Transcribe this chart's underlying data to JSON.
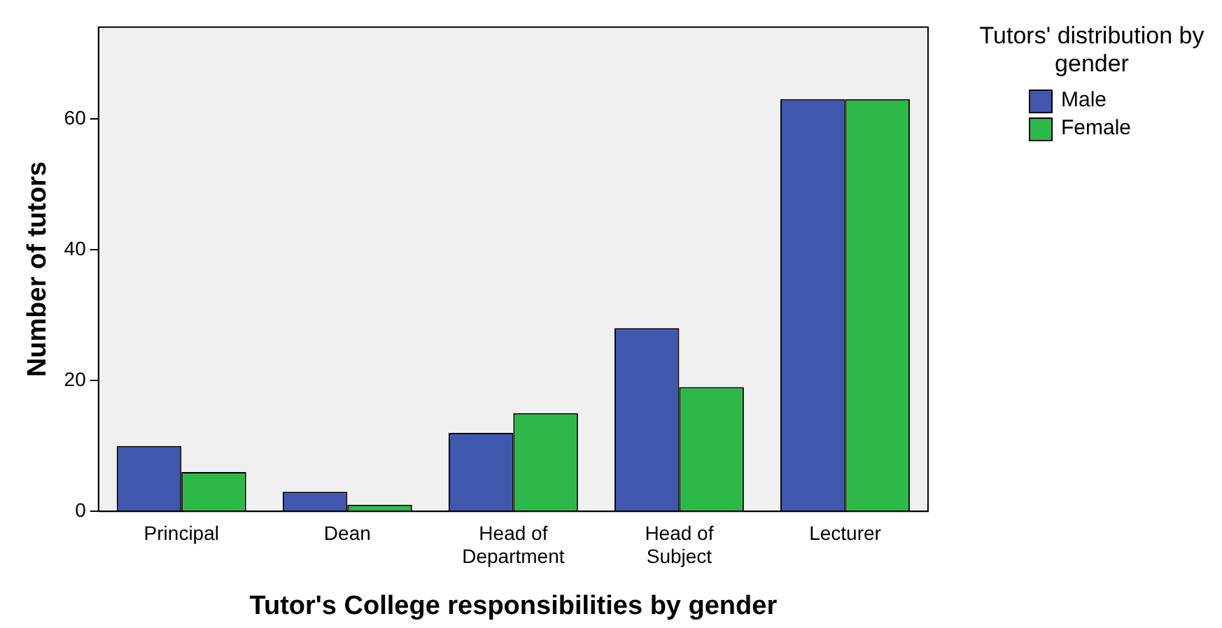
{
  "chart_data": {
    "type": "bar",
    "xlabel": "Tutor's College responsibilities by gender",
    "ylabel": "Number of tutors",
    "legend_title": "Tutors' distribution by gender",
    "categories": [
      "Principal",
      "Dean",
      "Head of Department",
      "Head of Subject",
      "Lecturer"
    ],
    "series": [
      {
        "name": "Male",
        "color": "#3f57ad",
        "values": [
          10,
          3,
          12,
          28,
          63
        ]
      },
      {
        "name": "Female",
        "color": "#2db94a",
        "values": [
          6,
          1,
          15,
          19,
          63
        ]
      }
    ],
    "ylim": [
      0,
      74
    ],
    "yticks": [
      0,
      20,
      40,
      60
    ],
    "grid": false,
    "legend": "top right"
  }
}
